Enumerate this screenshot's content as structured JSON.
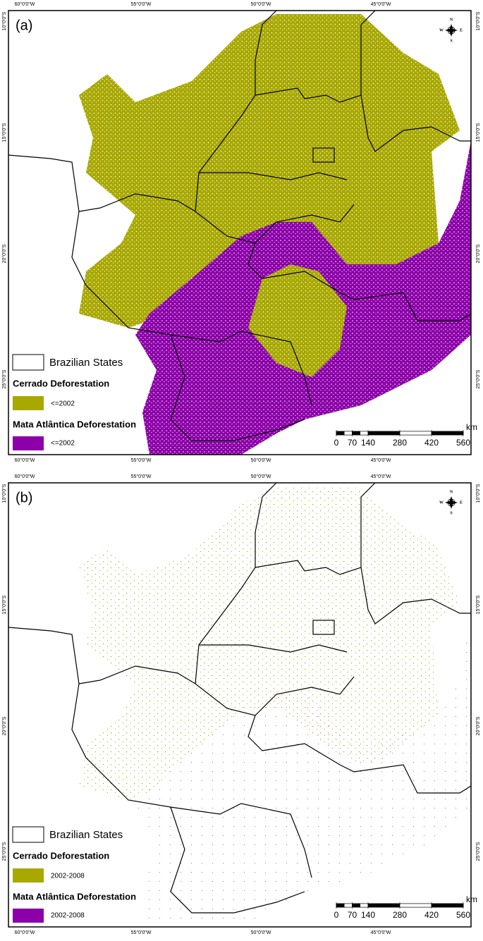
{
  "panels": [
    {
      "label": "(a)",
      "legend": {
        "states": "Brazilian States",
        "cerrado_title": "Cerrado Deforestation",
        "cerrado_period": "<=2002",
        "mata_title": "Mata Atlântica Deforestation",
        "mata_period": "<=2002"
      }
    },
    {
      "label": "(b)",
      "legend": {
        "states": "Brazilian States",
        "cerrado_title": "Cerrado Deforestation",
        "cerrado_period": "2002-2008",
        "mata_title": "Mata Atlântica Deforestation",
        "mata_period": "2002-2008"
      }
    }
  ],
  "lon_labels": [
    "60°0'0\"W",
    "55°0'0\"W",
    "50°0'0\"W",
    "45°0'0\"W"
  ],
  "lat_labels": [
    "10°0'0\"S",
    "15°0'0\"S",
    "20°0'0\"S",
    "25°0'0\"S"
  ],
  "compass": {
    "n": "N",
    "s": "S",
    "e": "E",
    "w": "W"
  },
  "scale": {
    "ticks": [
      0,
      70,
      140,
      280,
      420,
      560
    ],
    "unit": "km"
  }
}
